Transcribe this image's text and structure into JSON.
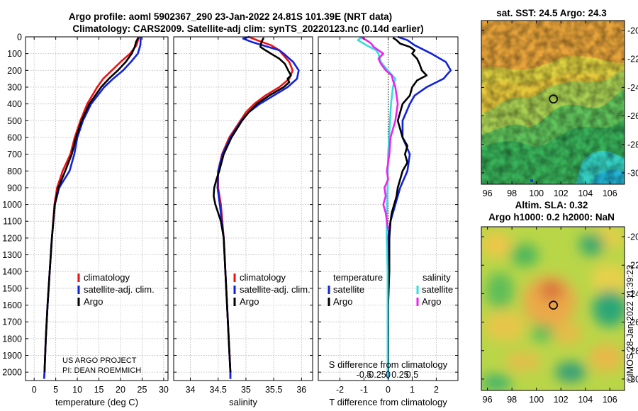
{
  "titles": {
    "line1": "Argo profile: aoml 5902367_290 23-Jan-2022 24.81S 101.39E (NRT data)",
    "line2": "Climatology: CARS2009. Satellite-adj clim: synTS_20220123.nc (0.14d earlier)"
  },
  "colors": {
    "climatology": "#ee1111",
    "satellite": "#1122dd",
    "argo": "#000000",
    "sal_satellite": "#33dddd",
    "sal_argo": "#ee22ee"
  },
  "credit": {
    "line1": "US ARGO PROJECT",
    "line2": "PI: DEAN ROEMMICH"
  },
  "watermark": "©IMOS 28-Jan-2022 11:39:23",
  "chart_data": [
    {
      "type": "line",
      "id": "temperature",
      "xlabel": "temperature (deg C)",
      "xlim": [
        -2,
        31
      ],
      "xticks": [
        0,
        5,
        10,
        15,
        20,
        25,
        30
      ],
      "ylim": [
        0,
        2050
      ],
      "yticks": [
        0,
        100,
        200,
        300,
        400,
        500,
        600,
        700,
        800,
        900,
        1000,
        1100,
        1200,
        1300,
        1400,
        1500,
        1600,
        1700,
        1800,
        1900,
        2000
      ],
      "grid": true,
      "legend": [
        "climatology",
        "satellite-adj. clim.",
        "Argo"
      ],
      "legend_position": "center-right",
      "series": [
        {
          "name": "climatology",
          "color": "#ee1111",
          "depth": [
            0,
            50,
            100,
            150,
            200,
            250,
            300,
            400,
            500,
            600,
            700,
            800,
            900,
            1000,
            1200,
            1400,
            1600,
            1800,
            2000,
            2040
          ],
          "values": [
            24.3,
            23.7,
            22.2,
            20.0,
            18.0,
            16.0,
            14.6,
            12.3,
            10.7,
            9.4,
            8.4,
            6.6,
            5.3,
            4.7,
            4.1,
            3.6,
            3.1,
            2.7,
            2.4,
            2.3
          ]
        },
        {
          "name": "satellite-adj. clim.",
          "color": "#1122dd",
          "depth": [
            0,
            50,
            100,
            150,
            200,
            250,
            300,
            400,
            500,
            600,
            700,
            800,
            900,
            1000,
            1200,
            1400,
            1600,
            1800,
            2000,
            2040
          ],
          "values": [
            24.7,
            24.6,
            24.0,
            22.4,
            20.6,
            18.3,
            16.2,
            13.2,
            11.3,
            10.0,
            9.3,
            8.2,
            5.8,
            4.8,
            4.1,
            3.6,
            3.1,
            2.7,
            2.4,
            2.3
          ]
        },
        {
          "name": "Argo",
          "color": "#000000",
          "depth": [
            5,
            30,
            60,
            100,
            150,
            200,
            250,
            300,
            400,
            500,
            600,
            700,
            800,
            900,
            1000,
            1200,
            1400,
            1600,
            1800,
            2000
          ],
          "values": [
            24.1,
            23.6,
            23.3,
            22.6,
            21.2,
            19.4,
            17.3,
            15.5,
            12.8,
            11.0,
            9.7,
            8.7,
            7.2,
            5.6,
            4.8,
            4.1,
            3.6,
            3.1,
            2.7,
            2.4
          ]
        }
      ]
    },
    {
      "type": "line",
      "id": "salinity",
      "xlabel": "salinity",
      "xlim": [
        33.7,
        36.2
      ],
      "xticks": [
        34,
        34.5,
        35,
        35.5,
        36
      ],
      "xtick_labels": [
        "34",
        "34.5",
        "35",
        "35.5",
        "36"
      ],
      "ylim": [
        0,
        2050
      ],
      "grid": true,
      "legend": [
        "climatology",
        "satellite-adj. clim.",
        "Argo"
      ],
      "legend_position": "center-right",
      "series": [
        {
          "name": "climatology",
          "color": "#ee1111",
          "depth": [
            0,
            20,
            50,
            80,
            100,
            150,
            200,
            250,
            300,
            350,
            400,
            450,
            500,
            600,
            700,
            800,
            900,
            1000,
            1200,
            1600,
            2000,
            2040
          ],
          "values": [
            35.05,
            35.2,
            35.45,
            35.6,
            35.65,
            35.78,
            35.84,
            35.78,
            35.6,
            35.35,
            35.15,
            35.0,
            34.9,
            34.7,
            34.57,
            34.5,
            34.5,
            34.55,
            34.6,
            34.66,
            34.72,
            34.72
          ]
        },
        {
          "name": "satellite-adj. clim.",
          "color": "#1122dd",
          "depth": [
            0,
            10,
            30,
            60,
            80,
            100,
            150,
            200,
            250,
            300,
            350,
            400,
            450,
            500,
            600,
            700,
            800,
            900,
            1000,
            1200,
            1600,
            2000,
            2040
          ],
          "values": [
            35.06,
            34.95,
            35.1,
            35.4,
            35.6,
            35.68,
            35.85,
            35.95,
            35.92,
            35.75,
            35.5,
            35.25,
            35.05,
            34.92,
            34.72,
            34.58,
            34.5,
            34.49,
            34.53,
            34.6,
            34.66,
            34.72,
            34.72
          ]
        },
        {
          "name": "Argo",
          "color": "#000000",
          "depth": [
            5,
            30,
            60,
            80,
            100,
            130,
            160,
            200,
            230,
            250,
            270,
            300,
            350,
            400,
            450,
            500,
            600,
            700,
            800,
            850,
            900,
            950,
            1000,
            1050,
            1100,
            1200,
            1400,
            1600,
            1800,
            2000
          ],
          "values": [
            35.32,
            35.28,
            35.26,
            35.35,
            35.45,
            35.6,
            35.7,
            35.76,
            35.81,
            35.75,
            35.78,
            35.68,
            35.42,
            35.2,
            35.05,
            34.93,
            34.74,
            34.6,
            34.52,
            34.47,
            34.43,
            34.42,
            34.45,
            34.5,
            34.55,
            34.6,
            34.63,
            34.66,
            34.69,
            34.72
          ]
        }
      ]
    },
    {
      "type": "line",
      "id": "difference",
      "xlabel": "T difference from climatology",
      "xlabel_top": "S difference from climatology",
      "xlim": [
        -2.9,
        2.9
      ],
      "xticks": [
        -2,
        -1,
        0,
        1,
        2
      ],
      "xtick_labels": [
        "-2",
        "-1",
        "0",
        "1",
        "2"
      ],
      "xticks_top": [
        -1,
        -0.5,
        0,
        0.5,
        1
      ],
      "xtick_labels_top": [
        "-0.5",
        "-0.25",
        "0",
        "0.25",
        "0.5"
      ],
      "ylim": [
        0,
        2050
      ],
      "grid": true,
      "legend_groups": [
        {
          "title": "temperature",
          "items": [
            "satellite",
            "Argo"
          ]
        },
        {
          "title": "salinity",
          "items": [
            "satellite",
            "Argo"
          ]
        }
      ],
      "legend_position": "center",
      "series": [
        {
          "name": "temperature satellite",
          "color": "#1122dd",
          "depth": [
            0,
            20,
            50,
            100,
            150,
            200,
            250,
            300,
            350,
            400,
            500,
            600,
            700,
            800,
            900,
            1000,
            1100,
            1200,
            1400,
            1600,
            1800,
            2000,
            2040
          ],
          "values": [
            0.4,
            0.8,
            1.1,
            1.8,
            2.4,
            2.6,
            2.3,
            1.6,
            1.1,
            0.9,
            0.6,
            0.6,
            0.9,
            0.8,
            0.5,
            0.3,
            0.1,
            0.0,
            0.0,
            0.0,
            0.0,
            0.0,
            0.0
          ]
        },
        {
          "name": "temperature Argo",
          "color": "#000000",
          "depth": [
            5,
            20,
            40,
            60,
            80,
            100,
            130,
            160,
            200,
            230,
            260,
            300,
            350,
            400,
            450,
            500,
            550,
            600,
            650,
            700,
            750,
            800,
            850,
            900,
            950,
            1000,
            1050,
            1100,
            1200,
            1400,
            1600,
            1800,
            2000
          ],
          "values": [
            0.2,
            0.35,
            0.5,
            0.9,
            1.1,
            1.0,
            1.2,
            1.3,
            1.4,
            1.6,
            1.2,
            1.0,
            0.9,
            0.6,
            0.5,
            0.4,
            0.5,
            0.6,
            0.8,
            0.7,
            0.8,
            0.6,
            0.5,
            0.4,
            0.35,
            0.25,
            0.15,
            0.1,
            0.05,
            0.05,
            0.0,
            0.0,
            0.0
          ]
        },
        {
          "name": "salinity satellite",
          "color": "#33dddd",
          "depth": [
            0,
            20,
            50,
            80,
            100,
            150,
            200,
            250,
            300,
            400,
            500,
            700,
            900,
            1000,
            1100,
            1200,
            1400,
            1600,
            1800,
            2000,
            2040
          ],
          "values": [
            -1.1,
            -1.25,
            -0.9,
            -0.5,
            -0.4,
            -0.3,
            -0.02,
            0.3,
            0.2,
            0.12,
            0.08,
            0.0,
            -0.02,
            -0.04,
            -0.06,
            -0.06,
            -0.02,
            -0.02,
            -0.02,
            -0.02,
            -0.02
          ]
        },
        {
          "name": "salinity Argo",
          "color": "#ee22ee",
          "depth": [
            5,
            20,
            40,
            60,
            80,
            100,
            130,
            160,
            200,
            230,
            260,
            300,
            350,
            400,
            450,
            500,
            600,
            700,
            800,
            850,
            900,
            950,
            1000,
            1050,
            1100,
            1150
          ],
          "values": [
            -1.1,
            -0.9,
            -0.7,
            -0.6,
            -0.4,
            -0.2,
            -0.4,
            -0.3,
            -0.1,
            0.15,
            0.2,
            0.3,
            0.35,
            0.4,
            0.35,
            0.3,
            0.1,
            0.05,
            -0.05,
            0.0,
            -0.15,
            -0.1,
            -0.2,
            -0.1,
            -0.05,
            0.0
          ]
        }
      ]
    },
    {
      "type": "heatmap",
      "id": "sst_map",
      "title": "sat. SST: 24.5 Argo: 24.3",
      "xlim": [
        95.5,
        107.2
      ],
      "ylim": [
        -30.8,
        -19.3
      ],
      "xticks": [
        96,
        98,
        100,
        102,
        104,
        106
      ],
      "yticks": [
        -20,
        -22,
        -24,
        -26,
        -28,
        -30
      ],
      "marker": {
        "lon": 101.39,
        "lat": -24.81
      }
    },
    {
      "type": "heatmap",
      "id": "sla_map",
      "title": "Altim. SLA: 0.32",
      "subtitle": "Argo h1000: 0.2 h2000: NaN",
      "xlim": [
        95.5,
        107.2
      ],
      "ylim": [
        -30.8,
        -19.3
      ],
      "xticks": [
        96,
        98,
        100,
        102,
        104,
        106
      ],
      "yticks": [
        -20,
        -22,
        -24,
        -26,
        -28,
        -30
      ],
      "marker": {
        "lon": 101.39,
        "lat": -24.81
      }
    }
  ]
}
